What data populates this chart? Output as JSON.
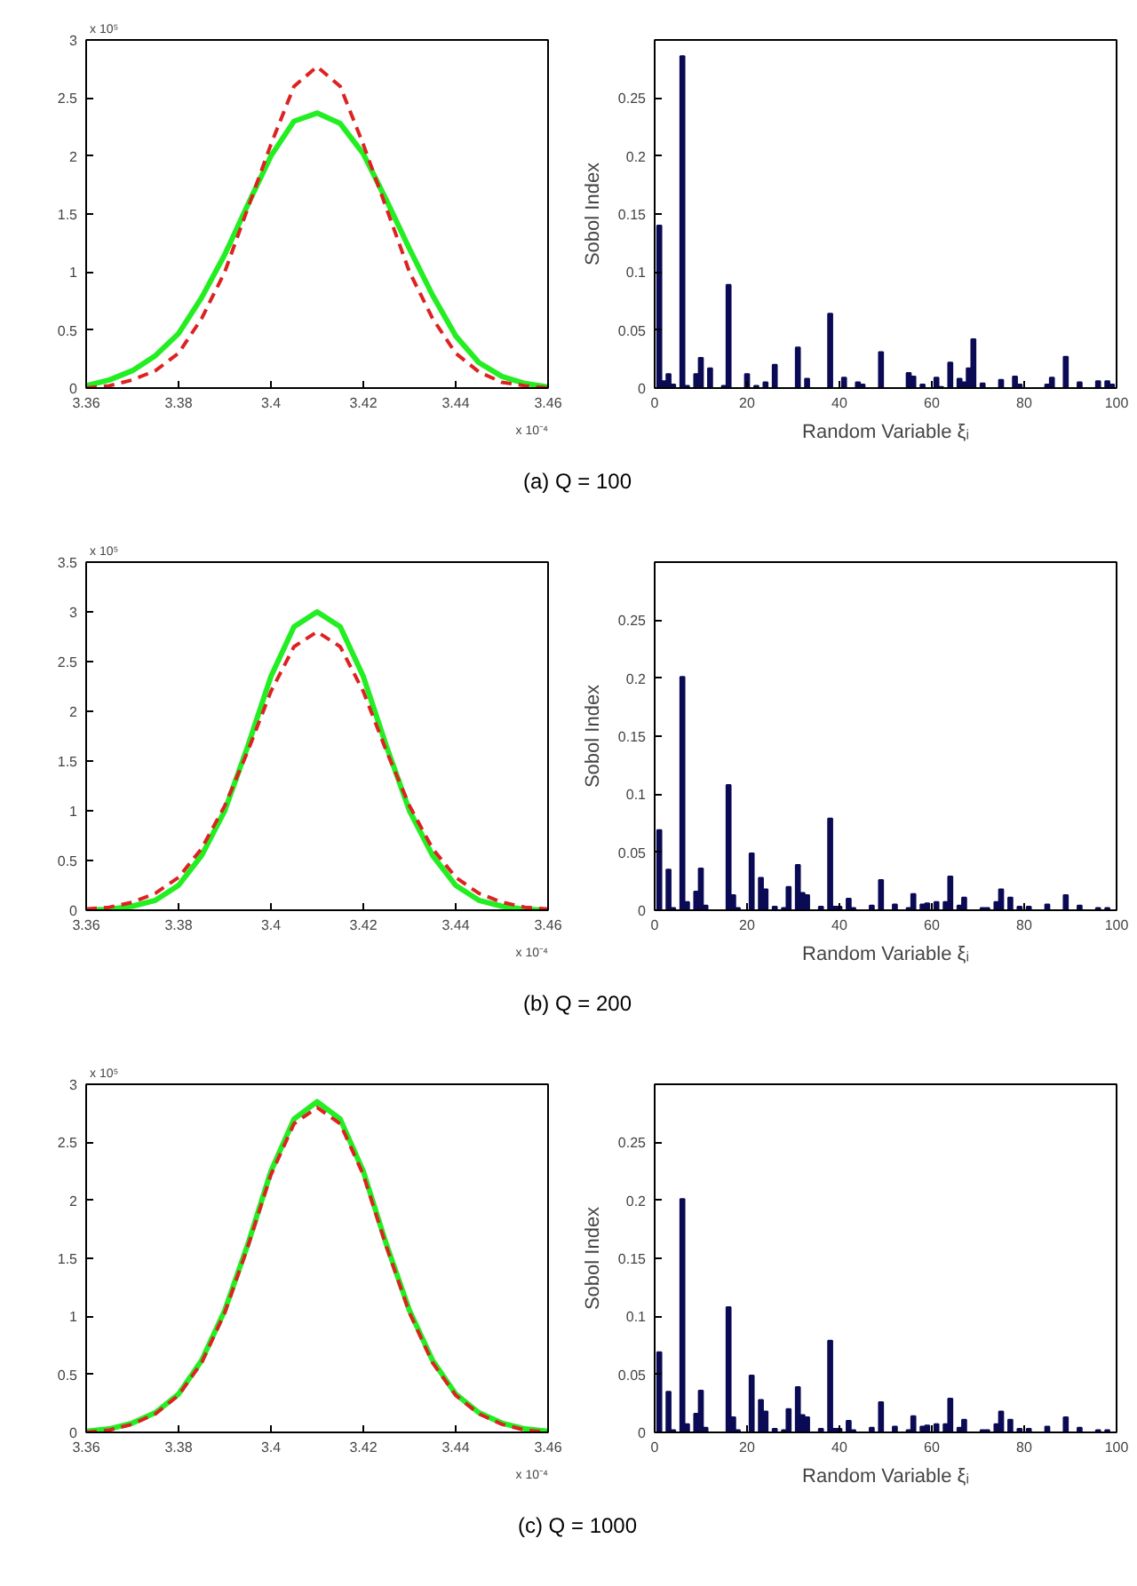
{
  "chart_data": [
    {
      "type": "line",
      "x": [
        3.36,
        3.365,
        3.37,
        3.375,
        3.38,
        3.385,
        3.39,
        3.395,
        3.4,
        3.405,
        3.41,
        3.415,
        3.42,
        3.425,
        3.43,
        3.435,
        3.44,
        3.445,
        3.45,
        3.455,
        3.46
      ],
      "xlim": [
        3.36,
        3.46
      ],
      "ylim": [
        0,
        3
      ],
      "xticks": [
        3.36,
        3.38,
        3.4,
        3.42,
        3.44,
        3.46
      ],
      "yticks": [
        0,
        0.5,
        1,
        1.5,
        2,
        2.5,
        3
      ],
      "grid": false,
      "annotations": [
        "x 10⁵",
        "x 10⁻⁴",
        "(a) Q = 100"
      ],
      "series": [
        {
          "color": "#22ee22",
          "line_style": "solid",
          "values": [
            0.02,
            0.07,
            0.15,
            0.28,
            0.47,
            0.78,
            1.15,
            1.58,
            2.0,
            2.3,
            2.37,
            2.28,
            2.02,
            1.62,
            1.2,
            0.8,
            0.45,
            0.22,
            0.1,
            0.04,
            0.01
          ]
        },
        {
          "color": "#dd2222",
          "line_style": "dashed",
          "values": [
            0,
            0.02,
            0.07,
            0.15,
            0.3,
            0.6,
            1.0,
            1.55,
            2.1,
            2.6,
            2.77,
            2.6,
            2.1,
            1.55,
            1.0,
            0.6,
            0.3,
            0.14,
            0.05,
            0.02,
            0
          ]
        }
      ]
    },
    {
      "type": "bar",
      "xlabel": "Random Variable ξᵢ",
      "ylabel": "Sobol Index",
      "color": "#0b0b55",
      "xlim": [
        0,
        100
      ],
      "ylim": [
        0,
        0.3
      ],
      "xticks": [
        0,
        20,
        40,
        60,
        80,
        100
      ],
      "yticks": [
        0,
        0.05,
        0.1,
        0.15,
        0.2,
        0.25
      ],
      "grid": false,
      "x": [
        1,
        2,
        3,
        4,
        6,
        7,
        9,
        10,
        12,
        15,
        16,
        20,
        22,
        24,
        26,
        31,
        33,
        38,
        41,
        44,
        45,
        49,
        55,
        56,
        58,
        61,
        62,
        64,
        66,
        67,
        68,
        69,
        71,
        75,
        78,
        79,
        85,
        86,
        89,
        92,
        96,
        98,
        99
      ],
      "values": [
        0.14,
        0.006,
        0.012,
        0.003,
        0.286,
        0.002,
        0.012,
        0.026,
        0.017,
        0.002,
        0.089,
        0.012,
        0.002,
        0.005,
        0.02,
        0.035,
        0.008,
        0.064,
        0.009,
        0.005,
        0.003,
        0.031,
        0.013,
        0.01,
        0.003,
        0.009,
        0.001,
        0.022,
        0.008,
        0.005,
        0.017,
        0.042,
        0.004,
        0.007,
        0.01,
        0.003,
        0.003,
        0.009,
        0.027,
        0.005,
        0.006,
        0.006,
        0.003
      ]
    },
    {
      "type": "line",
      "x": [
        3.36,
        3.365,
        3.37,
        3.375,
        3.38,
        3.385,
        3.39,
        3.395,
        3.4,
        3.405,
        3.41,
        3.415,
        3.42,
        3.425,
        3.43,
        3.435,
        3.44,
        3.445,
        3.45,
        3.455,
        3.46
      ],
      "xlim": [
        3.36,
        3.46
      ],
      "ylim": [
        0,
        3.5
      ],
      "xticks": [
        3.36,
        3.38,
        3.4,
        3.42,
        3.44,
        3.46
      ],
      "yticks": [
        0,
        0.5,
        1,
        1.5,
        2,
        2.5,
        3,
        3.5
      ],
      "grid": false,
      "annotations": [
        "x 10⁵",
        "x 10⁻⁴",
        "(b) Q = 200"
      ],
      "series": [
        {
          "color": "#22ee22",
          "line_style": "solid",
          "values": [
            0,
            0.01,
            0.04,
            0.1,
            0.25,
            0.55,
            1.0,
            1.65,
            2.35,
            2.85,
            3.0,
            2.85,
            2.35,
            1.65,
            1.0,
            0.55,
            0.25,
            0.1,
            0.04,
            0.01,
            0
          ]
        },
        {
          "color": "#dd2222",
          "line_style": "dashed",
          "values": [
            0.01,
            0.03,
            0.08,
            0.17,
            0.33,
            0.62,
            1.05,
            1.6,
            2.2,
            2.65,
            2.8,
            2.65,
            2.2,
            1.6,
            1.05,
            0.62,
            0.33,
            0.17,
            0.08,
            0.03,
            0.01
          ]
        }
      ]
    },
    {
      "type": "bar",
      "xlabel": "Random Variable ξᵢ",
      "ylabel": "Sobol Index",
      "color": "#0b0b55",
      "xlim": [
        0,
        100
      ],
      "ylim": [
        0,
        0.3
      ],
      "xticks": [
        0,
        20,
        40,
        60,
        80,
        100
      ],
      "yticks": [
        0,
        0.05,
        0.1,
        0.15,
        0.2,
        0.25
      ],
      "grid": false,
      "x": [
        1,
        3,
        4,
        6,
        7,
        9,
        10,
        11,
        16,
        17,
        18,
        21,
        23,
        24,
        26,
        28,
        29,
        31,
        32,
        33,
        36,
        38,
        39,
        40,
        42,
        43,
        47,
        49,
        52,
        55,
        56,
        58,
        59,
        61,
        63,
        64,
        66,
        67,
        71,
        72,
        74,
        75,
        77,
        79,
        81,
        85,
        89,
        92,
        96,
        98
      ],
      "values": [
        0.069,
        0.035,
        0.002,
        0.201,
        0.007,
        0.016,
        0.036,
        0.004,
        0.108,
        0.013,
        0.002,
        0.049,
        0.028,
        0.018,
        0.003,
        0.002,
        0.02,
        0.039,
        0.015,
        0.013,
        0.003,
        0.079,
        0.003,
        0.003,
        0.01,
        0.002,
        0.004,
        0.026,
        0.005,
        0.002,
        0.014,
        0.005,
        0.006,
        0.007,
        0.007,
        0.029,
        0.004,
        0.011,
        0.002,
        0.002,
        0.007,
        0.018,
        0.011,
        0.003,
        0.003,
        0.005,
        0.013,
        0.004,
        0.002,
        0.002
      ]
    },
    {
      "type": "line",
      "x": [
        3.36,
        3.365,
        3.37,
        3.375,
        3.38,
        3.385,
        3.39,
        3.395,
        3.4,
        3.405,
        3.41,
        3.415,
        3.42,
        3.425,
        3.43,
        3.435,
        3.44,
        3.445,
        3.45,
        3.455,
        3.46
      ],
      "xlim": [
        3.36,
        3.46
      ],
      "ylim": [
        0,
        3
      ],
      "xticks": [
        3.36,
        3.38,
        3.4,
        3.42,
        3.44,
        3.46
      ],
      "yticks": [
        0,
        0.5,
        1,
        1.5,
        2,
        2.5,
        3
      ],
      "grid": false,
      "annotations": [
        "x 10⁵",
        "x 10⁻⁴",
        "(c) Q = 1000"
      ],
      "series": [
        {
          "color": "#22ee22",
          "line_style": "solid",
          "values": [
            0.01,
            0.03,
            0.08,
            0.17,
            0.33,
            0.62,
            1.05,
            1.62,
            2.25,
            2.7,
            2.85,
            2.7,
            2.25,
            1.62,
            1.05,
            0.62,
            0.33,
            0.17,
            0.08,
            0.03,
            0.01
          ]
        },
        {
          "color": "#dd2222",
          "line_style": "dashed",
          "values": [
            0,
            0.02,
            0.07,
            0.16,
            0.32,
            0.6,
            1.03,
            1.6,
            2.22,
            2.66,
            2.8,
            2.66,
            2.22,
            1.6,
            1.03,
            0.6,
            0.32,
            0.16,
            0.07,
            0.02,
            0
          ]
        }
      ]
    },
    {
      "type": "bar",
      "xlabel": "Random Variable ξᵢ",
      "ylabel": "Sobol Index",
      "color": "#0b0b55",
      "xlim": [
        0,
        100
      ],
      "ylim": [
        0,
        0.3
      ],
      "xticks": [
        0,
        20,
        40,
        60,
        80,
        100
      ],
      "yticks": [
        0,
        0.05,
        0.1,
        0.15,
        0.2,
        0.25
      ],
      "grid": false,
      "x": [
        1,
        3,
        4,
        6,
        7,
        9,
        10,
        11,
        16,
        17,
        18,
        21,
        23,
        24,
        26,
        28,
        29,
        31,
        32,
        33,
        36,
        38,
        39,
        40,
        42,
        43,
        47,
        49,
        52,
        55,
        56,
        58,
        59,
        61,
        63,
        64,
        66,
        67,
        71,
        72,
        74,
        75,
        77,
        79,
        81,
        85,
        89,
        92,
        96,
        98
      ],
      "values": [
        0.069,
        0.035,
        0.002,
        0.201,
        0.007,
        0.016,
        0.036,
        0.004,
        0.108,
        0.013,
        0.002,
        0.049,
        0.028,
        0.018,
        0.003,
        0.002,
        0.02,
        0.039,
        0.015,
        0.013,
        0.003,
        0.079,
        0.003,
        0.003,
        0.01,
        0.002,
        0.004,
        0.026,
        0.005,
        0.002,
        0.014,
        0.005,
        0.006,
        0.007,
        0.007,
        0.029,
        0.004,
        0.011,
        0.002,
        0.002,
        0.007,
        0.018,
        0.011,
        0.003,
        0.003,
        0.005,
        0.013,
        0.004,
        0.002,
        0.002
      ]
    }
  ]
}
